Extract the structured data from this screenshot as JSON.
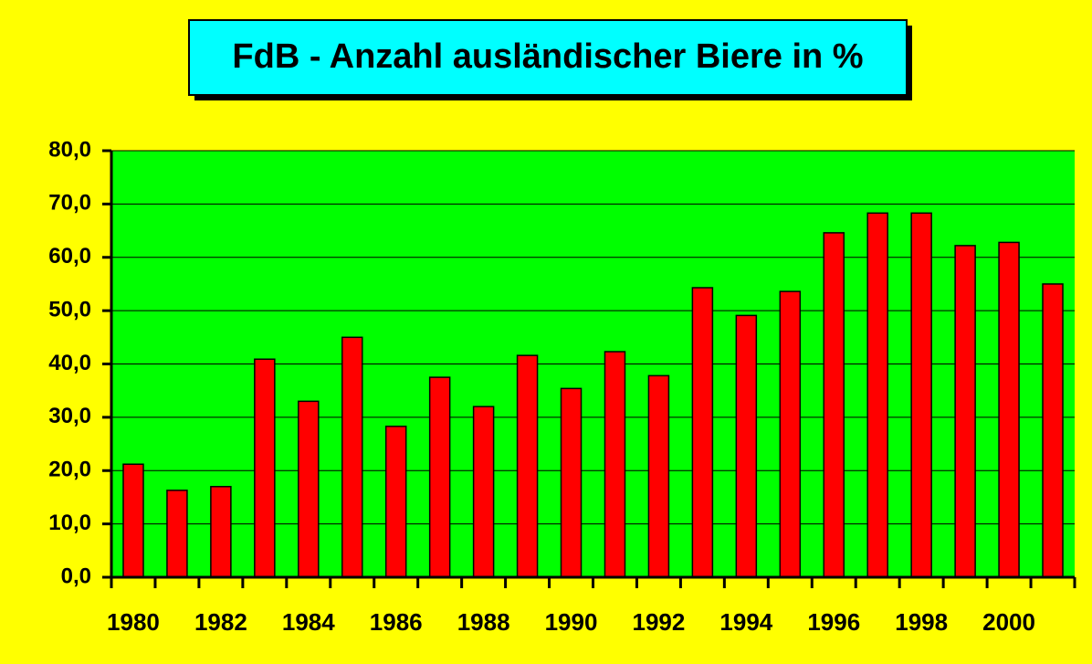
{
  "chart_data": {
    "type": "bar",
    "title": "FdB - Anzahl ausländischer Biere in %",
    "categories": [
      "1980",
      null,
      "1982",
      null,
      "1984",
      null,
      "1986",
      null,
      "1988",
      null,
      "1990",
      null,
      "1992",
      null,
      "1994",
      null,
      "1996",
      null,
      "1998",
      null,
      "2000",
      null
    ],
    "values": [
      21.2,
      16.3,
      17.0,
      40.9,
      33.0,
      45.0,
      28.3,
      37.5,
      32.0,
      41.6,
      35.4,
      42.3,
      37.8,
      54.3,
      49.1,
      53.6,
      64.6,
      68.3,
      68.3,
      62.2,
      62.8,
      55.0
    ],
    "color": "#ff0000",
    "ylim": [
      0,
      80
    ],
    "yticks": [
      {
        "value": 0,
        "label": "0,0"
      },
      {
        "value": 10,
        "label": "10,0"
      },
      {
        "value": 20,
        "label": "20,0"
      },
      {
        "value": 30,
        "label": "30,0"
      },
      {
        "value": 40,
        "label": "40,0"
      },
      {
        "value": 50,
        "label": "50,0"
      },
      {
        "value": 60,
        "label": "60,0"
      },
      {
        "value": 70,
        "label": "70,0"
      },
      {
        "value": 80,
        "label": "80,0"
      }
    ],
    "grid": true
  }
}
